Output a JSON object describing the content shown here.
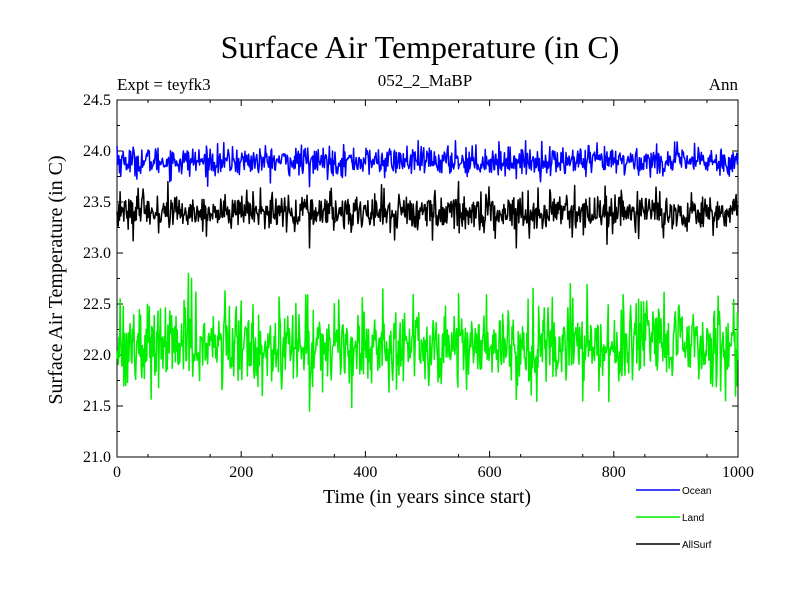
{
  "chart_data": {
    "type": "line",
    "title": "Surface Air Temperature (in C)",
    "subtitle": "052_2_MaBP",
    "expt_label": "Expt = teyfk3",
    "season_label": "Ann",
    "xlabel": "Time (in years since start)",
    "ylabel": "Surface Air Temperature (in C)",
    "xlim": [
      0,
      1000
    ],
    "ylim": [
      21.0,
      24.5
    ],
    "xticks": [
      0,
      200,
      400,
      600,
      800,
      1000
    ],
    "xtick_labels": [
      "0",
      "200",
      "400",
      "600",
      "800",
      "1000"
    ],
    "yticks": [
      21.0,
      21.5,
      22.0,
      22.5,
      23.0,
      23.5,
      24.0,
      24.5
    ],
    "ytick_labels": [
      "21.0",
      "21.5",
      "22.0",
      "22.5",
      "23.0",
      "23.5",
      "24.0",
      "24.5"
    ],
    "grid": false,
    "legend_position": "bottom-right",
    "n_years": 1000,
    "series": [
      {
        "name": "Ocean",
        "color": "#0000ff",
        "mean": 23.9,
        "noise_amplitude": 0.07,
        "min": 23.65,
        "max": 24.1,
        "notable_points": [
          [
            0,
            24.05
          ],
          [
            310,
            23.65
          ],
          [
            545,
            24.1
          ],
          [
            755,
            23.75
          ]
        ]
      },
      {
        "name": "Land",
        "color": "#00ee00",
        "mean": 22.1,
        "noise_amplitude": 0.2,
        "min": 21.45,
        "max": 22.8,
        "notable_points": [
          [
            5,
            22.55
          ],
          [
            115,
            22.8
          ],
          [
            120,
            22.75
          ],
          [
            310,
            21.45
          ],
          [
            550,
            22.6
          ],
          [
            730,
            22.7
          ],
          [
            750,
            21.55
          ],
          [
            980,
            21.55
          ]
        ]
      },
      {
        "name": "AllSurf",
        "color": "#000000",
        "mean": 23.4,
        "noise_amplitude": 0.09,
        "min": 23.05,
        "max": 23.7,
        "notable_points": [
          [
            5,
            23.6
          ],
          [
            310,
            23.05
          ],
          [
            550,
            23.7
          ],
          [
            880,
            23.15
          ]
        ]
      }
    ]
  }
}
